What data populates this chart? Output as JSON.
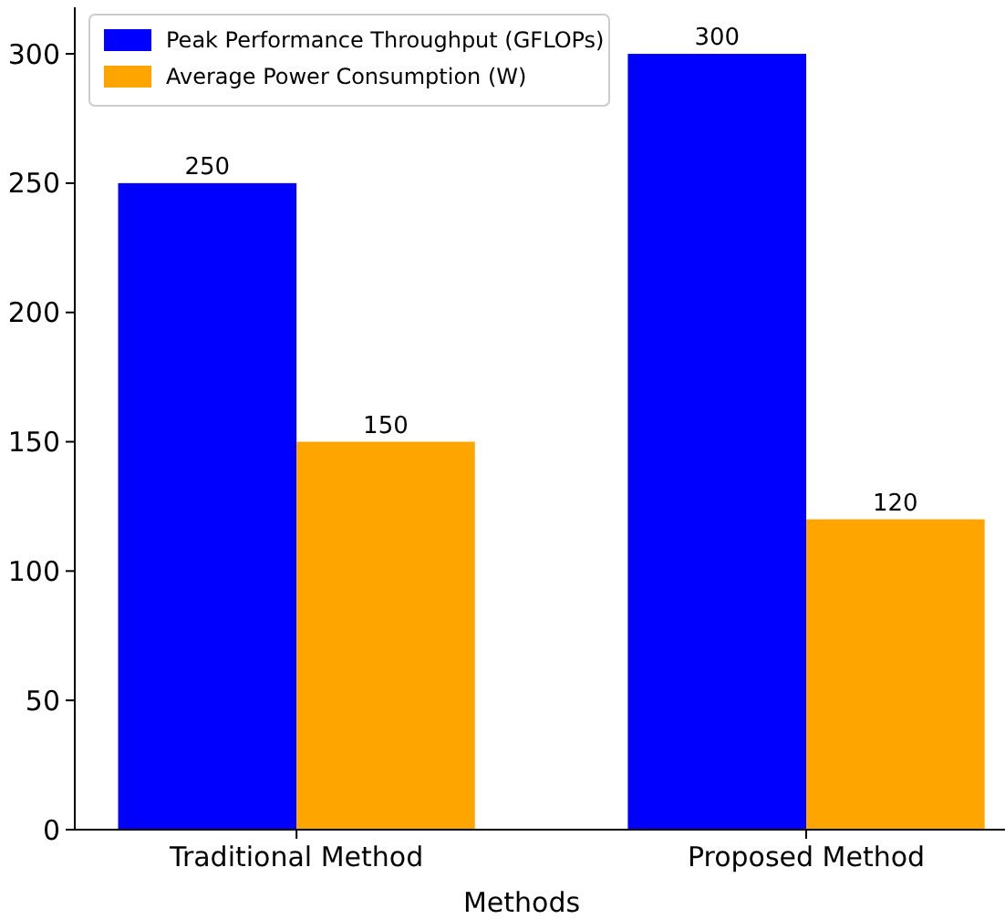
{
  "chart_data": {
    "type": "bar",
    "xlabel": "Methods",
    "categories": [
      "Traditional Method",
      "Proposed Method"
    ],
    "series": [
      {
        "name": "Peak Performance Throughput (GFLOPs)",
        "color": "#0000ff",
        "values": [
          250,
          300
        ]
      },
      {
        "name": "Average Power Consumption (W)",
        "color": "#ffa500",
        "values": [
          150,
          120
        ]
      }
    ],
    "ylim": [
      0,
      318
    ],
    "yticks": [
      0,
      50,
      100,
      150,
      200,
      250,
      300
    ],
    "data_labels": true,
    "legend": "top left",
    "grid": false
  }
}
